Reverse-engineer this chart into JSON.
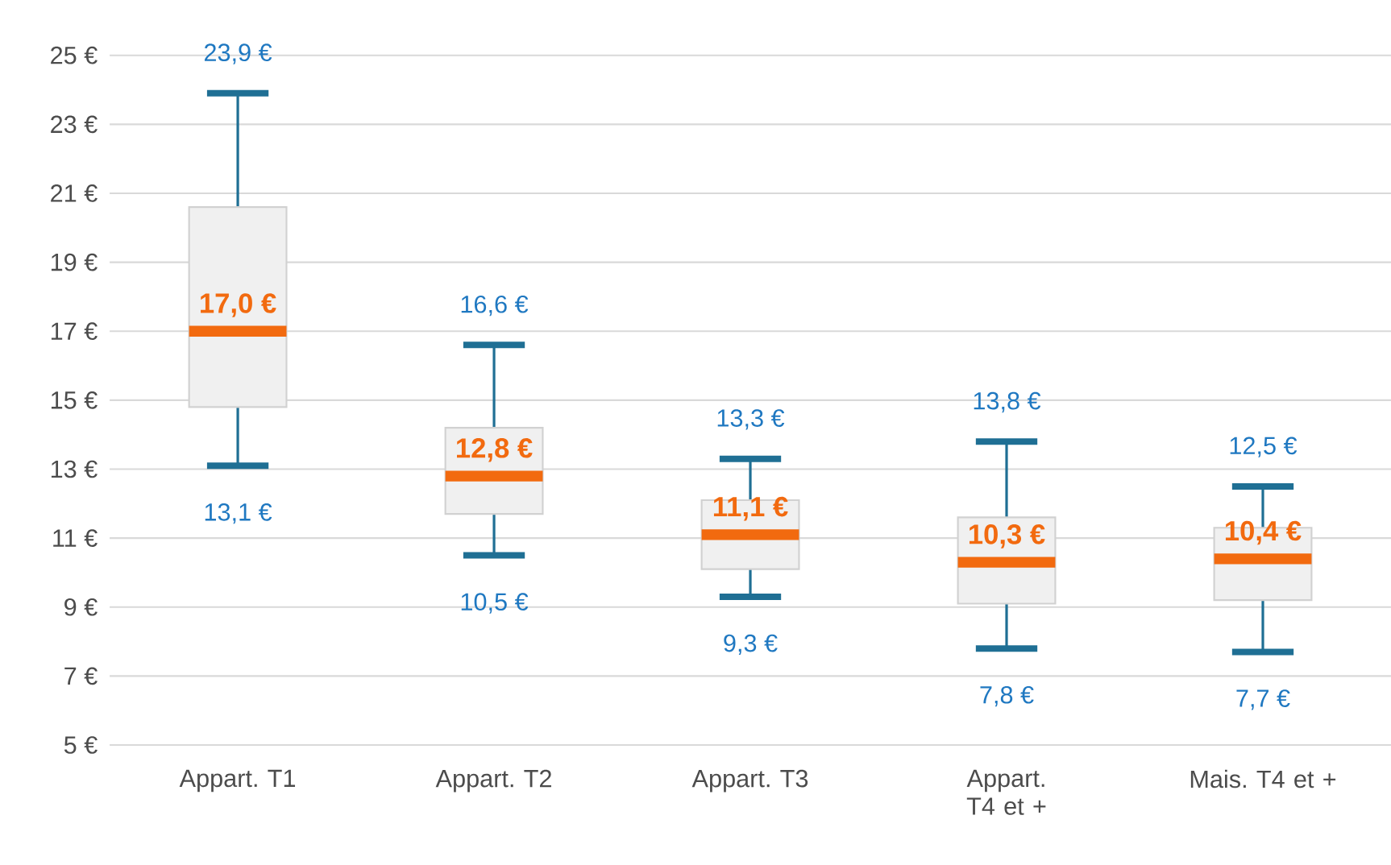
{
  "chart_data": {
    "type": "box",
    "categories": [
      "Appart. T1",
      "Appart. T2",
      "Appart. T3",
      "Appart. T4 et +",
      "Mais. T4 et +"
    ],
    "boxes": [
      {
        "low": 13.1,
        "q1": 14.8,
        "median": 17.0,
        "q3": 20.6,
        "high": 23.9
      },
      {
        "low": 10.5,
        "q1": 11.7,
        "median": 12.8,
        "q3": 14.2,
        "high": 16.6
      },
      {
        "low": 9.3,
        "q1": 10.1,
        "median": 11.1,
        "q3": 12.1,
        "high": 13.3
      },
      {
        "low": 7.8,
        "q1": 9.1,
        "median": 10.3,
        "q3": 11.6,
        "high": 13.8
      },
      {
        "low": 7.7,
        "q1": 9.2,
        "median": 10.4,
        "q3": 11.3,
        "high": 12.5
      }
    ],
    "color": "#f0f0f0",
    "ylim": [
      5,
      25
    ],
    "yticks": [
      {
        "value": 5,
        "label": "5 €"
      },
      {
        "value": 7,
        "label": "7 €"
      },
      {
        "value": 9,
        "label": "9 €"
      },
      {
        "value": 11,
        "label": "11 €"
      },
      {
        "value": 13,
        "label": "13 €"
      },
      {
        "value": 15,
        "label": "15 €"
      },
      {
        "value": 17,
        "label": "17 €"
      },
      {
        "value": 19,
        "label": "19 €"
      },
      {
        "value": 21,
        "label": "21 €"
      },
      {
        "value": 23,
        "label": "23 €"
      },
      {
        "value": 25,
        "label": "25 €"
      }
    ],
    "grid": "y",
    "annotations": [
      "23,9 €",
      "17,0 €",
      "13,1 €",
      "16,6 €",
      "12,8 €",
      "10,5 €",
      "13,3 €",
      "11,1 €",
      "9,3 €",
      "13,8 €",
      "10,3 €",
      "7,8 €",
      "12,5 €",
      "10,4 €",
      "7,7 €"
    ]
  }
}
